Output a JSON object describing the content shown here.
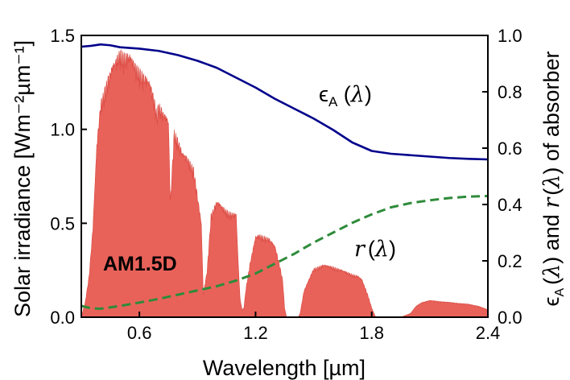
{
  "chart_data": {
    "type": "area",
    "xlabel": "Wavelength [µm]",
    "ylabel_left": "Solar irradiance [Wm⁻²µm⁻¹]",
    "ylabel_right": "ϵA(λ) and r(λ) of absorber",
    "ylabel_right_parts": {
      "eps": "ϵ",
      "eps_sub": "A",
      "open": "(",
      "lambda": "λ",
      "close": ")",
      "and": " and ",
      "r": "r",
      "tail": " of absorber"
    },
    "xlim": [
      0.3,
      2.4
    ],
    "ylim_left": [
      0,
      1.5
    ],
    "ylim_right": [
      0,
      1.0
    ],
    "xticks": [
      0.6,
      1.2,
      1.8,
      2.4
    ],
    "xtick_labels": [
      "0.6",
      "1.2",
      "1.8",
      "2.4"
    ],
    "yticks_left": [
      0.0,
      0.5,
      1.0,
      1.5
    ],
    "ytick_labels_left": [
      "0.0",
      "0.5",
      "1.0",
      "1.5"
    ],
    "yticks_right": [
      0.0,
      0.2,
      0.4,
      0.6,
      0.8,
      1.0
    ],
    "ytick_labels_right": [
      "0.0",
      "0.2",
      "0.4",
      "0.6",
      "0.8",
      "1.0"
    ],
    "colors": {
      "spectrum": "#e8625a",
      "spectrum_edge": "#d9473f",
      "emissivity": "#00008b",
      "reflectance": "#2e8b3a"
    },
    "series": [
      {
        "name": "AM1.5D",
        "label": "AM1.5D",
        "axis": "left",
        "style": "filled",
        "x": [
          0.3,
          0.32,
          0.34,
          0.36,
          0.38,
          0.4,
          0.43,
          0.46,
          0.48,
          0.5,
          0.52,
          0.55,
          0.58,
          0.6,
          0.62,
          0.65,
          0.67,
          0.69,
          0.7,
          0.72,
          0.75,
          0.76,
          0.78,
          0.8,
          0.82,
          0.85,
          0.88,
          0.9,
          0.92,
          0.93,
          0.95,
          0.97,
          1.0,
          1.04,
          1.07,
          1.1,
          1.11,
          1.12,
          1.13,
          1.14,
          1.15,
          1.17,
          1.2,
          1.22,
          1.25,
          1.27,
          1.3,
          1.32,
          1.34,
          1.35,
          1.36,
          1.37,
          1.4,
          1.42,
          1.43,
          1.44,
          1.45,
          1.5,
          1.55,
          1.6,
          1.65,
          1.7,
          1.73,
          1.75,
          1.78,
          1.8,
          1.82,
          1.85,
          1.9,
          1.95,
          2.0,
          2.03,
          2.06,
          2.1,
          2.2,
          2.3,
          2.35,
          2.4
        ],
        "y": [
          0.0,
          0.08,
          0.22,
          0.48,
          0.92,
          1.15,
          1.26,
          1.34,
          1.38,
          1.43,
          1.41,
          1.4,
          1.35,
          1.33,
          1.3,
          1.26,
          1.2,
          1.1,
          1.15,
          1.1,
          1.05,
          0.62,
          1.0,
          0.95,
          0.88,
          0.85,
          0.8,
          0.65,
          0.5,
          0.12,
          0.25,
          0.55,
          0.62,
          0.58,
          0.56,
          0.55,
          0.3,
          0.1,
          0.04,
          0.05,
          0.15,
          0.28,
          0.43,
          0.44,
          0.43,
          0.42,
          0.38,
          0.3,
          0.2,
          0.05,
          0.0,
          0.0,
          0.0,
          0.0,
          0.02,
          0.08,
          0.14,
          0.26,
          0.28,
          0.27,
          0.25,
          0.23,
          0.22,
          0.2,
          0.12,
          0.05,
          0.0,
          0.0,
          0.0,
          0.0,
          0.02,
          0.06,
          0.08,
          0.09,
          0.08,
          0.07,
          0.06,
          0.04
        ]
      },
      {
        "name": "ϵA(λ)",
        "label_parts": {
          "main": "ϵ",
          "sub": "A",
          "open": " (",
          "lambda": "λ",
          "close": ")"
        },
        "axis": "right",
        "style": "solid",
        "x": [
          0.3,
          0.35,
          0.4,
          0.45,
          0.5,
          0.6,
          0.7,
          0.8,
          0.9,
          1.0,
          1.1,
          1.2,
          1.3,
          1.4,
          1.5,
          1.6,
          1.7,
          1.8,
          1.9,
          2.0,
          2.1,
          2.2,
          2.3,
          2.4
        ],
        "y": [
          0.96,
          0.963,
          0.968,
          0.965,
          0.958,
          0.953,
          0.945,
          0.93,
          0.91,
          0.885,
          0.85,
          0.815,
          0.775,
          0.74,
          0.705,
          0.665,
          0.62,
          0.59,
          0.58,
          0.575,
          0.57,
          0.565,
          0.562,
          0.56
        ]
      },
      {
        "name": "r(λ)",
        "label_parts": {
          "main": "r",
          "open": "(",
          "lambda": "λ",
          "close": ")"
        },
        "axis": "right",
        "style": "dashed",
        "x": [
          0.3,
          0.35,
          0.4,
          0.5,
          0.6,
          0.7,
          0.8,
          0.9,
          1.0,
          1.1,
          1.2,
          1.3,
          1.4,
          1.5,
          1.6,
          1.7,
          1.8,
          1.9,
          2.0,
          2.1,
          2.2,
          2.3,
          2.4
        ],
        "y": [
          0.04,
          0.032,
          0.03,
          0.04,
          0.052,
          0.065,
          0.08,
          0.095,
          0.11,
          0.13,
          0.155,
          0.19,
          0.225,
          0.265,
          0.3,
          0.335,
          0.365,
          0.39,
          0.405,
          0.415,
          0.423,
          0.428,
          0.43
        ]
      }
    ]
  }
}
